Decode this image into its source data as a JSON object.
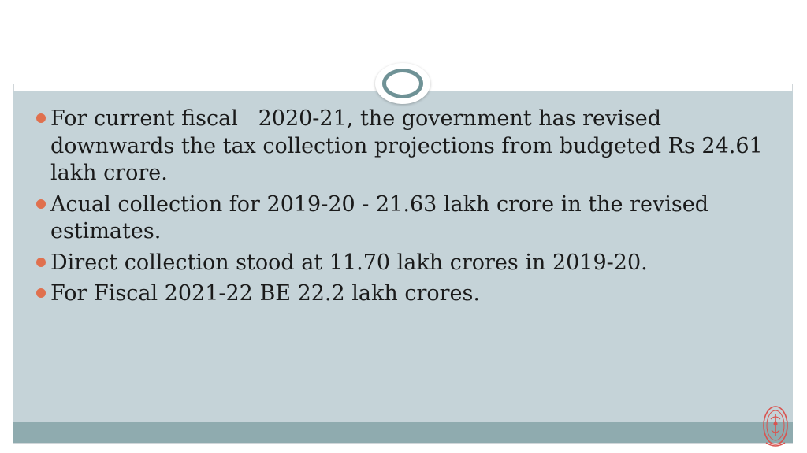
{
  "slide": {
    "bullets": [
      {
        "text": "For current fiscal   2020-21, the government has revised downwards the tax collection projections from budgeted Rs 24.61 lakh crore."
      },
      {
        "text": "Acual collection for 2019-20 - 21.63 lakh crore in the revised estimates."
      },
      {
        "text": "Direct collection stood at 11.70 lakh crores in 2019-20."
      },
      {
        "text": "For Fiscal 2021-22 BE 22.2 lakh crores."
      }
    ]
  },
  "theme": {
    "content_background": "#c5d3d8",
    "footer_band": "#8fabaf",
    "bullet_color": "#e0704e",
    "ornament_ring": "#6f9296",
    "seal_color": "#d9534f"
  },
  "icons": {
    "bullet": "bullet-dot",
    "ornament": "oval-ornament-icon",
    "seal": "institution-seal-icon"
  }
}
